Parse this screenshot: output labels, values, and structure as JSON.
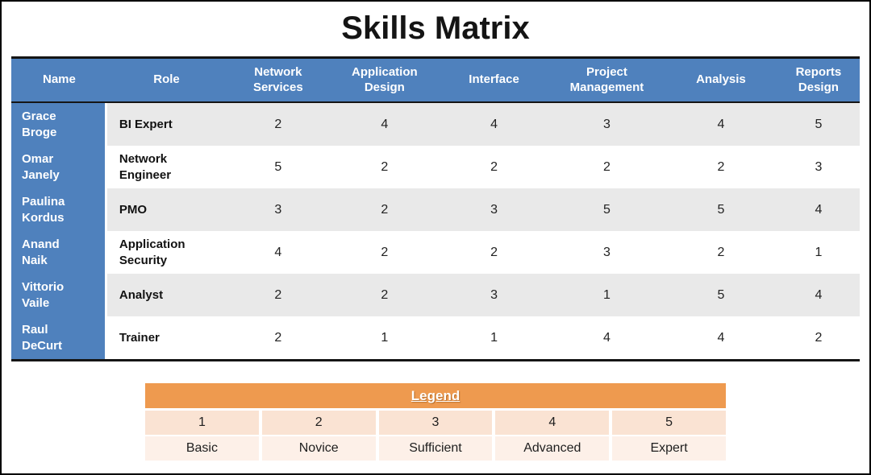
{
  "page": {
    "title": "Skills Matrix"
  },
  "colors": {
    "header_blue": "#4F81BD",
    "stripe_gray": "#E9E9E9",
    "legend_orange": "#EE9A4F",
    "legend_peach_dark": "#FAE3D3",
    "legend_peach_light": "#FDF0E8"
  },
  "matrix": {
    "columns": [
      "Name",
      "Role",
      "Network Services",
      "Application Design",
      "Interface",
      "Project Management",
      "Analysis",
      "Reports Design"
    ],
    "rows": [
      {
        "name": "Grace Broge",
        "role": "BI Expert",
        "scores": [
          2,
          4,
          4,
          3,
          4,
          5
        ]
      },
      {
        "name": "Omar Janely",
        "role": "Network Engineer",
        "scores": [
          5,
          2,
          2,
          2,
          2,
          3
        ]
      },
      {
        "name": "Paulina Kordus",
        "role": "PMO",
        "scores": [
          3,
          2,
          3,
          5,
          5,
          4
        ]
      },
      {
        "name": "Anand Naik",
        "role": "Application Security",
        "scores": [
          4,
          2,
          2,
          3,
          2,
          1
        ]
      },
      {
        "name": "Vittorio Vaile",
        "role": "Analyst",
        "scores": [
          2,
          2,
          3,
          1,
          5,
          4
        ]
      },
      {
        "name": "Raul DeCurt",
        "role": "Trainer",
        "scores": [
          2,
          1,
          1,
          4,
          4,
          2
        ]
      }
    ]
  },
  "legend": {
    "title": "Legend",
    "levels": [
      {
        "value": "1",
        "label": "Basic"
      },
      {
        "value": "2",
        "label": "Novice"
      },
      {
        "value": "3",
        "label": "Sufficient"
      },
      {
        "value": "4",
        "label": "Advanced"
      },
      {
        "value": "5",
        "label": "Expert"
      }
    ]
  }
}
